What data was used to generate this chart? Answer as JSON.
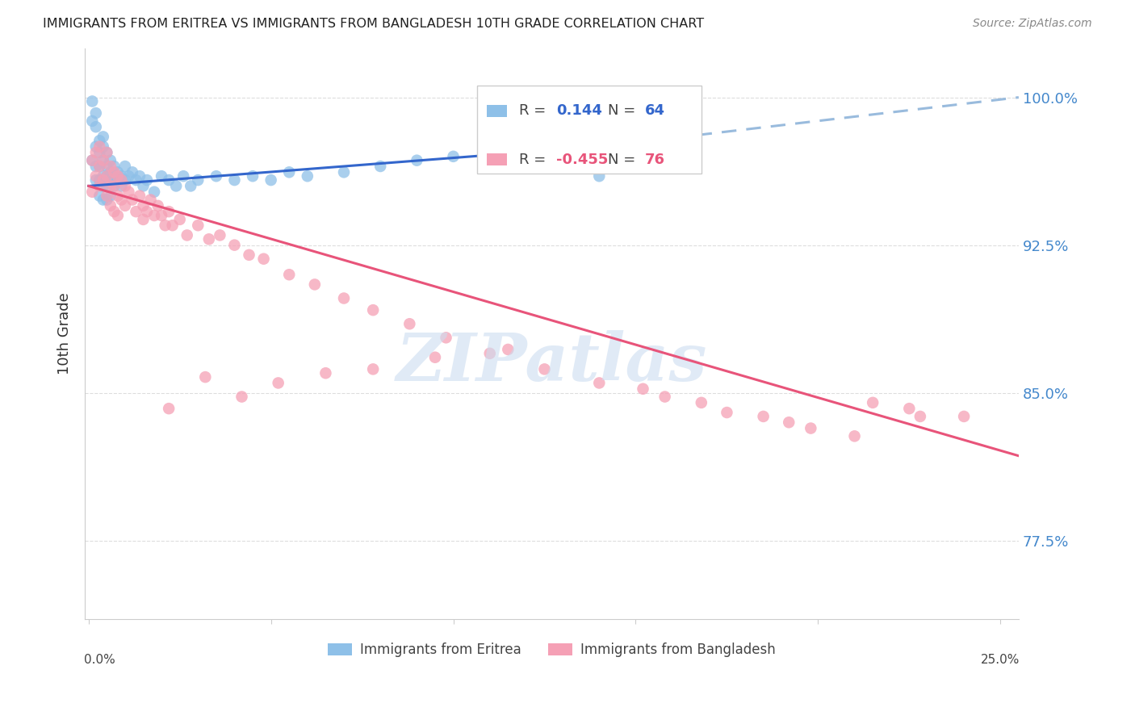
{
  "title": "IMMIGRANTS FROM ERITREA VS IMMIGRANTS FROM BANGLADESH 10TH GRADE CORRELATION CHART",
  "source": "Source: ZipAtlas.com",
  "ylabel": "10th Grade",
  "ytick_labels": [
    "100.0%",
    "92.5%",
    "85.0%",
    "77.5%"
  ],
  "ytick_values": [
    1.0,
    0.925,
    0.85,
    0.775
  ],
  "ylim": [
    0.735,
    1.025
  ],
  "xlim": [
    -0.001,
    0.255
  ],
  "legend_eritrea_R": "0.144",
  "legend_eritrea_N": "64",
  "legend_bangladesh_R": "-0.455",
  "legend_bangladesh_N": "76",
  "eritrea_color": "#8ec0e8",
  "bangladesh_color": "#f5a0b5",
  "trendline_eritrea_color": "#3366cc",
  "trendline_bangladesh_color": "#e8547a",
  "trendline_eritrea_dashed_color": "#99bbdd",
  "background_color": "#ffffff",
  "grid_color": "#dddddd",
  "title_color": "#222222",
  "axis_label_color": "#333333",
  "right_tick_color": "#4488cc",
  "watermark_color": "#ccddf0",
  "trendline_eritrea_x0": 0.0,
  "trendline_eritrea_y0": 0.955,
  "trendline_eritrea_x1": 0.14,
  "trendline_eritrea_y1": 0.975,
  "trendline_eritrea_dash_x1": 0.255,
  "trendline_eritrea_dash_y1": 1.0,
  "trendline_bangladesh_x0": 0.0,
  "trendline_bangladesh_y0": 0.955,
  "trendline_bangladesh_x1": 0.255,
  "trendline_bangladesh_y1": 0.818,
  "eritrea_x": [
    0.001,
    0.001,
    0.001,
    0.002,
    0.002,
    0.002,
    0.002,
    0.002,
    0.003,
    0.003,
    0.003,
    0.003,
    0.003,
    0.004,
    0.004,
    0.004,
    0.004,
    0.004,
    0.004,
    0.005,
    0.005,
    0.005,
    0.005,
    0.005,
    0.006,
    0.006,
    0.006,
    0.006,
    0.007,
    0.007,
    0.007,
    0.008,
    0.008,
    0.009,
    0.009,
    0.01,
    0.01,
    0.011,
    0.012,
    0.013,
    0.014,
    0.015,
    0.016,
    0.018,
    0.02,
    0.022,
    0.024,
    0.026,
    0.028,
    0.03,
    0.035,
    0.04,
    0.045,
    0.05,
    0.055,
    0.06,
    0.07,
    0.08,
    0.09,
    0.1,
    0.11,
    0.12,
    0.13,
    0.14
  ],
  "eritrea_y": [
    0.998,
    0.988,
    0.968,
    0.992,
    0.985,
    0.975,
    0.965,
    0.958,
    0.978,
    0.972,
    0.965,
    0.958,
    0.95,
    0.98,
    0.975,
    0.968,
    0.96,
    0.955,
    0.948,
    0.972,
    0.965,
    0.96,
    0.955,
    0.948,
    0.968,
    0.962,
    0.958,
    0.95,
    0.965,
    0.96,
    0.955,
    0.962,
    0.958,
    0.96,
    0.955,
    0.965,
    0.958,
    0.96,
    0.962,
    0.958,
    0.96,
    0.955,
    0.958,
    0.952,
    0.96,
    0.958,
    0.955,
    0.96,
    0.955,
    0.958,
    0.96,
    0.958,
    0.96,
    0.958,
    0.962,
    0.96,
    0.962,
    0.965,
    0.968,
    0.97,
    0.972,
    0.968,
    0.965,
    0.96
  ],
  "bangladesh_x": [
    0.001,
    0.001,
    0.002,
    0.002,
    0.003,
    0.003,
    0.003,
    0.004,
    0.004,
    0.005,
    0.005,
    0.005,
    0.006,
    0.006,
    0.006,
    0.007,
    0.007,
    0.007,
    0.008,
    0.008,
    0.008,
    0.009,
    0.009,
    0.01,
    0.01,
    0.011,
    0.012,
    0.013,
    0.014,
    0.015,
    0.015,
    0.016,
    0.017,
    0.018,
    0.019,
    0.02,
    0.021,
    0.022,
    0.023,
    0.025,
    0.027,
    0.03,
    0.033,
    0.036,
    0.04,
    0.044,
    0.048,
    0.055,
    0.062,
    0.07,
    0.078,
    0.088,
    0.098,
    0.11,
    0.125,
    0.14,
    0.158,
    0.175,
    0.192,
    0.21,
    0.225,
    0.24,
    0.152,
    0.168,
    0.185,
    0.198,
    0.215,
    0.228,
    0.115,
    0.095,
    0.078,
    0.065,
    0.052,
    0.042,
    0.032,
    0.022
  ],
  "bangladesh_y": [
    0.968,
    0.952,
    0.972,
    0.96,
    0.975,
    0.965,
    0.955,
    0.968,
    0.958,
    0.972,
    0.96,
    0.95,
    0.965,
    0.955,
    0.945,
    0.962,
    0.955,
    0.942,
    0.96,
    0.95,
    0.94,
    0.958,
    0.948,
    0.955,
    0.945,
    0.952,
    0.948,
    0.942,
    0.95,
    0.945,
    0.938,
    0.942,
    0.948,
    0.94,
    0.945,
    0.94,
    0.935,
    0.942,
    0.935,
    0.938,
    0.93,
    0.935,
    0.928,
    0.93,
    0.925,
    0.92,
    0.918,
    0.91,
    0.905,
    0.898,
    0.892,
    0.885,
    0.878,
    0.87,
    0.862,
    0.855,
    0.848,
    0.84,
    0.835,
    0.828,
    0.842,
    0.838,
    0.852,
    0.845,
    0.838,
    0.832,
    0.845,
    0.838,
    0.872,
    0.868,
    0.862,
    0.86,
    0.855,
    0.848,
    0.858,
    0.842
  ]
}
